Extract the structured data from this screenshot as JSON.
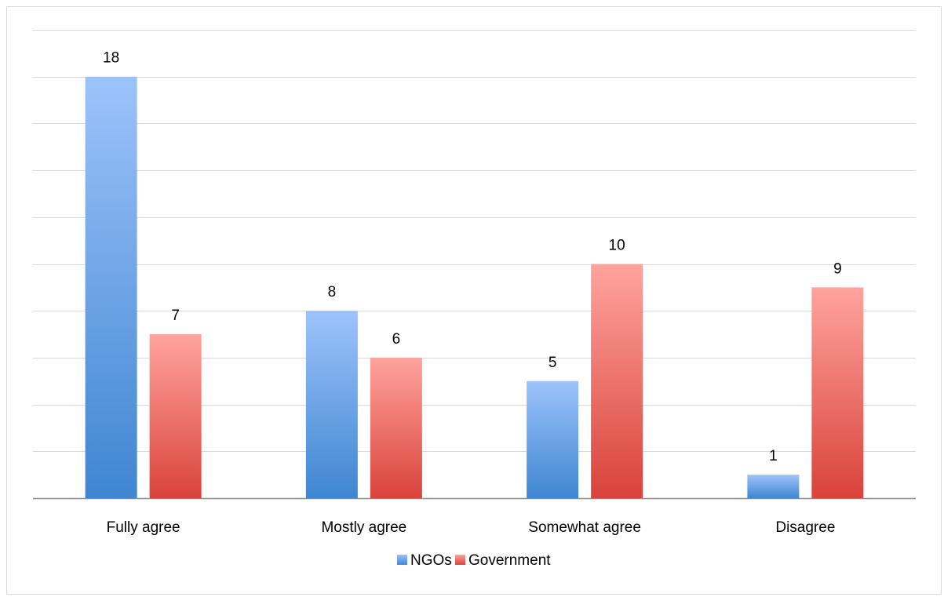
{
  "chart_data": {
    "type": "bar",
    "categories": [
      "Fully agree",
      "Mostly agree",
      "Somewhat agree",
      "Disagree"
    ],
    "series": [
      {
        "name": "NGOs",
        "values": [
          18,
          8,
          5,
          1
        ],
        "color": "#5b9bd5"
      },
      {
        "name": "Government",
        "values": [
          7,
          6,
          10,
          9
        ],
        "color": "#e8534a"
      }
    ],
    "ylim": [
      0,
      20
    ],
    "grid": true,
    "legend": "bottom",
    "data_labels": true,
    "title": "",
    "xlabel": "",
    "ylabel": ""
  },
  "colors": {
    "ngos_top": "#9dc3fb",
    "ngos_bottom": "#3f86d1",
    "government_top": "#ffa39d",
    "government_bottom": "#d9433b"
  }
}
